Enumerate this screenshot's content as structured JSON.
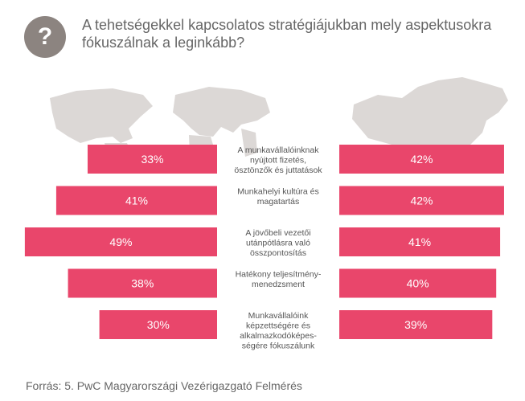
{
  "header": {
    "icon": "question-mark-icon",
    "icon_glyph": "?",
    "title": "A tehetségekkel kapcsolatos stratégiájukban mely aspektusokra fókuszálnak a leginkább?"
  },
  "colors": {
    "bar": "#e9466b",
    "map": "#dcd8d6",
    "badge": "#8c8480"
  },
  "chart_data": {
    "type": "bar",
    "orientation": "horizontal",
    "layout": "butterfly",
    "categories": [
      [
        "A munkavállalóinknak",
        "nyújtott fizetés,",
        "ösztönzők és juttatások"
      ],
      [
        "Munkahelyi kultúra és",
        "magatartás"
      ],
      [
        "A jövőbeli vezetői",
        "utánpótlásra való",
        "összpontosítás"
      ],
      [
        "Hatékony teljesítmény-",
        "menedzsment"
      ],
      [
        "Munkavállalóink",
        "képzettségére és",
        "alkalmazkodóképes-",
        "ségére fókuszálunk"
      ]
    ],
    "series": [
      {
        "name": "world",
        "side": "left",
        "values": [
          33,
          41,
          49,
          38,
          30
        ],
        "labels": [
          "33%",
          "41%",
          "49%",
          "38%",
          "30%"
        ]
      },
      {
        "name": "hungary",
        "side": "right",
        "values": [
          42,
          42,
          41,
          40,
          39
        ],
        "labels": [
          "42%",
          "42%",
          "41%",
          "40%",
          "39%"
        ]
      }
    ],
    "unit": "%"
  },
  "footer": {
    "source": "Forrás: 5. PwC Magyarországi Vezérigazgató Felmérés"
  }
}
